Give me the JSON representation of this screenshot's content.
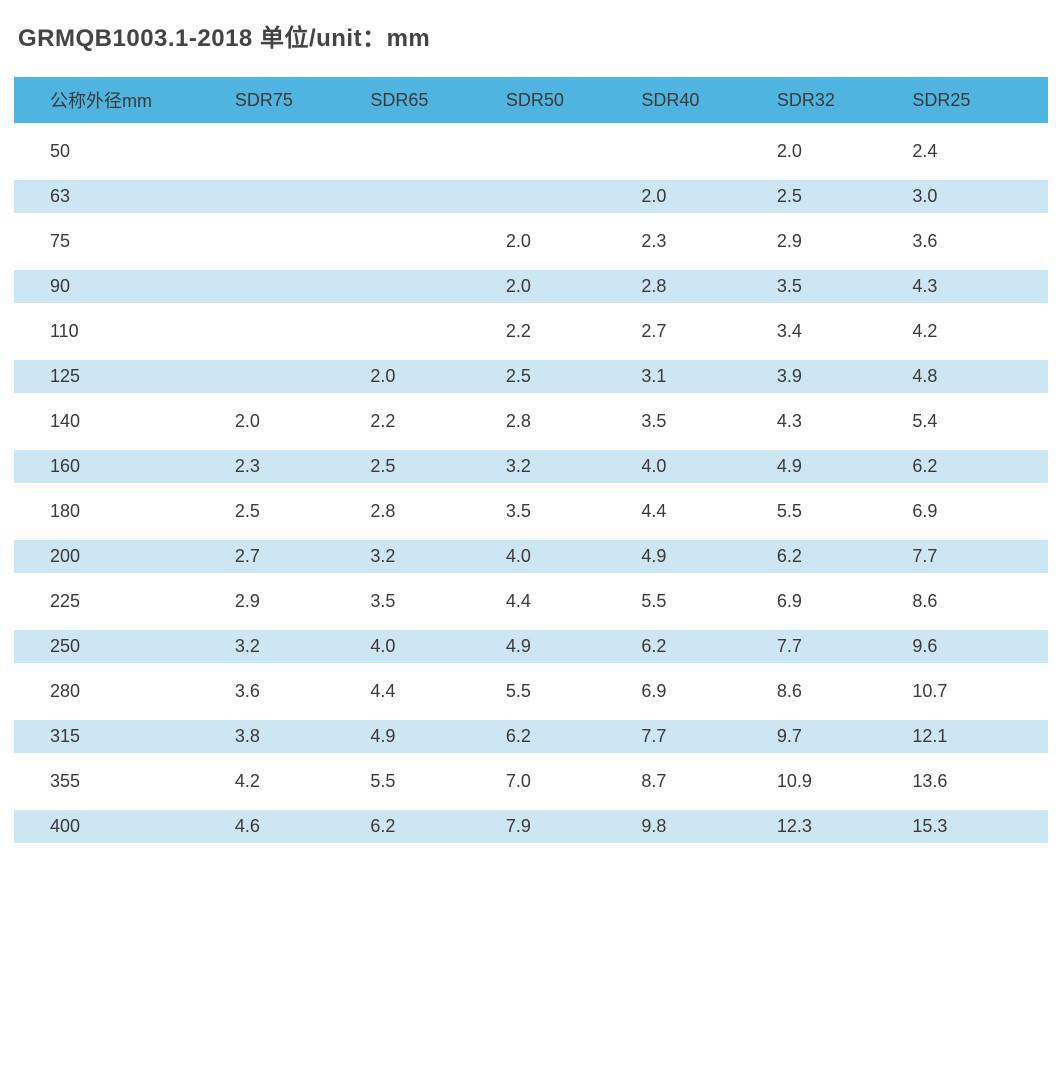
{
  "title": "GRMQB1003.1-2018  单位/unit：mm",
  "table": {
    "header_bg": "#4fb4df",
    "alt_row_bg": "#cce6f3",
    "text_color": "#3a3a3a",
    "columns": [
      "公称外径mm",
      "SDR75",
      "SDR65",
      "SDR50",
      "SDR40",
      "SDR32",
      "SDR25"
    ],
    "col_widths_pct": [
      19,
      13.5,
      13.5,
      13.5,
      13.5,
      13.5,
      13.5
    ],
    "header_fontsize": 18,
    "cell_fontsize": 18,
    "rows": [
      [
        "50",
        "",
        "",
        "",
        "",
        "2.0",
        "2.4"
      ],
      [
        "63",
        "",
        "",
        "",
        "2.0",
        "2.5",
        "3.0"
      ],
      [
        "75",
        "",
        "",
        "2.0",
        "2.3",
        "2.9",
        "3.6"
      ],
      [
        "90",
        "",
        "",
        "2.0",
        "2.8",
        "3.5",
        "4.3"
      ],
      [
        "110",
        "",
        "",
        "2.2",
        "2.7",
        "3.4",
        "4.2"
      ],
      [
        "125",
        "",
        "2.0",
        "2.5",
        "3.1",
        "3.9",
        "4.8"
      ],
      [
        "140",
        "2.0",
        "2.2",
        "2.8",
        "3.5",
        "4.3",
        "5.4"
      ],
      [
        "160",
        "2.3",
        "2.5",
        "3.2",
        "4.0",
        "4.9",
        "6.2"
      ],
      [
        "180",
        "2.5",
        "2.8",
        "3.5",
        "4.4",
        "5.5",
        "6.9"
      ],
      [
        "200",
        "2.7",
        "3.2",
        "4.0",
        "4.9",
        "6.2",
        "7.7"
      ],
      [
        "225",
        "2.9",
        "3.5",
        "4.4",
        "5.5",
        "6.9",
        "8.6"
      ],
      [
        "250",
        "3.2",
        "4.0",
        "4.9",
        "6.2",
        "7.7",
        "9.6"
      ],
      [
        "280",
        "3.6",
        "4.4",
        "5.5",
        "6.9",
        "8.6",
        "10.7"
      ],
      [
        "315",
        "3.8",
        "4.9",
        "6.2",
        "7.7",
        "9.7",
        "12.1"
      ],
      [
        "355",
        "4.2",
        "5.5",
        "7.0",
        "8.7",
        "10.9",
        "13.6"
      ],
      [
        "400",
        "4.6",
        "6.2",
        "7.9",
        "9.8",
        "12.3",
        "15.3"
      ]
    ]
  }
}
